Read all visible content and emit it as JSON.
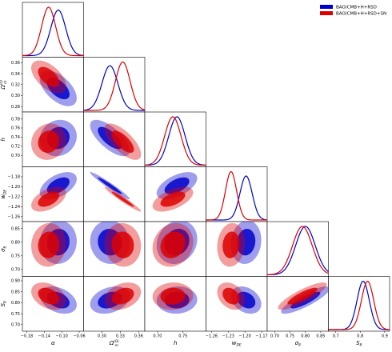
{
  "chart_data": {
    "type": "triangle",
    "parameters": [
      {
        "key": "alpha",
        "label": "α",
        "range": [
          -0.19,
          -0.05
        ],
        "ticks": [
          -0.18,
          -0.14,
          -0.1,
          -0.06
        ],
        "tick_labels": [
          "−0.18",
          "−0.14",
          "−0.10",
          "−0.06"
        ]
      },
      {
        "key": "omega_m",
        "label": "Ω_m^(0)",
        "label_main": "Ω",
        "label_sub": "m",
        "label_sup": "(0)",
        "range": [
          0.27,
          0.37
        ],
        "ticks": [
          0.28,
          0.3,
          0.32,
          0.34,
          0.36
        ],
        "tick_labels": [
          "0.28",
          "0.30",
          "0.32",
          "0.34",
          "0.36"
        ],
        "bottom_ticks": [
          0.3,
          0.33,
          0.36
        ],
        "bottom_tick_labels": [
          "0.30",
          "0.33",
          "0.36"
        ]
      },
      {
        "key": "h",
        "label": "h",
        "range": [
          0.675,
          0.795
        ],
        "ticks": [
          0.7,
          0.72,
          0.74,
          0.76,
          0.78
        ],
        "tick_labels": [
          "0.70",
          "0.72",
          "0.74",
          "0.76",
          "0.78"
        ],
        "bottom_ticks": [
          0.7,
          0.75
        ],
        "bottom_tick_labels": [
          "0.70",
          "0.75"
        ]
      },
      {
        "key": "w_DE",
        "label": "w_DE",
        "label_main": "w",
        "label_sub": "DE",
        "range": [
          -1.27,
          -1.16
        ],
        "ticks": [
          -1.26,
          -1.24,
          -1.22,
          -1.2,
          -1.18
        ],
        "tick_labels": [
          "−1.26",
          "−1.24",
          "−1.22",
          "−1.20",
          "−1.18"
        ],
        "bottom_ticks": [
          -1.26,
          -1.23,
          -1.2,
          -1.17
        ],
        "bottom_tick_labels": [
          "−1.26",
          "−1.23",
          "−1.20",
          "−1.17"
        ]
      },
      {
        "key": "sigma8",
        "label": "σ_8",
        "label_main": "σ",
        "label_sub": "8",
        "range": [
          0.675,
          0.875
        ],
        "ticks": [
          0.7,
          0.75,
          0.8,
          0.85
        ],
        "tick_labels": [
          "0.70",
          "0.75",
          "0.80",
          "0.85"
        ]
      },
      {
        "key": "S8",
        "label": "S_8",
        "label_main": "S",
        "label_sub": "8",
        "range": [
          0.67,
          0.92
        ],
        "ticks": [
          0.7,
          0.75,
          0.8,
          0.85,
          0.9
        ],
        "tick_labels": [
          "0.70",
          "0.75",
          "0.80",
          "0.85",
          "0.90"
        ],
        "bottom_ticks": [
          0.7,
          0.8,
          0.9
        ],
        "bottom_tick_labels": [
          "0.7",
          "0.8",
          "0.9"
        ]
      }
    ],
    "series": [
      {
        "name": "BAO/CMB+H+RSD",
        "color": "#0000cc",
        "mean": [
          -0.108,
          0.313,
          0.738,
          -1.198,
          0.8,
          0.812
        ],
        "sd": [
          0.017,
          0.013,
          0.016,
          0.011,
          0.032,
          0.025
        ]
      },
      {
        "name": "BAO/CMB+H+RSD+SN",
        "color": "#dd0000",
        "mean": [
          -0.13,
          0.334,
          0.73,
          -1.225,
          0.79,
          0.83
        ],
        "sd": [
          0.016,
          0.012,
          0.016,
          0.01,
          0.032,
          0.025
        ]
      }
    ],
    "correlations": {
      "alpha|omega_m": -0.55,
      "alpha|h": 0.1,
      "alpha|w_DE": 0.5,
      "alpha|sigma8": 0.05,
      "alpha|S8": -0.35,
      "omega_m|h": -0.7,
      "omega_m|w_DE": -0.97,
      "omega_m|sigma8": -0.05,
      "omega_m|S8": 0.3,
      "h|w_DE": 0.55,
      "h|sigma8": 0.15,
      "h|S8": 0.05,
      "w_DE|sigma8": 0.1,
      "w_DE|S8": -0.3,
      "sigma8|S8": 0.85
    },
    "contour_levels_sigma": [
      1.52,
      2.49
    ],
    "legend_position": "top-right",
    "grid": false
  }
}
